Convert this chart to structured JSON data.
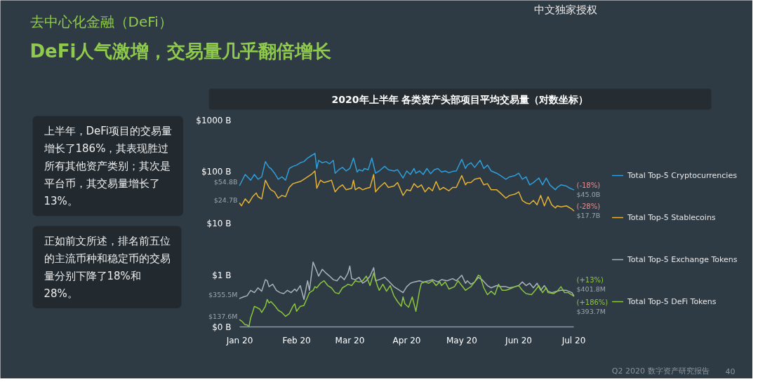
{
  "chart_data": {
    "type": "line",
    "title": "2020年上半年 各类资产头部项目平均交易量（对数坐标）",
    "annotations": [
      "去中心化金融（DeFi）",
      "DeFi人气激增，交易量几乎翻倍增长",
      "上半年，DeFi项目的交易量增长了186%，其表现胜过所有其他资产类别；其次是平台币，其交易量增长了13%。",
      "正如前文所述，排名前五位的主流币种和稳定币的交易量分别下降了18%和28%。",
      "中文独家授权",
      "Q2 2020 数字资产研究报告",
      "40",
      {
        "text": "(-18%)",
        "x": "2020-07-01",
        "y": 45.0
      },
      {
        "text": "(-28%)",
        "x": "2020-07-01",
        "y": 17.7
      },
      {
        "text": "(+13%)",
        "x": "2020-07-01",
        "y": 0.4018
      },
      {
        "text": "$401.8M",
        "x": "2020-07-01",
        "y": 0.4018
      },
      {
        "text": "(+186%)",
        "x": "2020-07-01",
        "y": 0.3937
      },
      {
        "text": "$393.7M",
        "x": "2020-07-01",
        "y": 0.3937
      },
      {
        "text": "$355.5M",
        "x": "2020-01-01",
        "y": 0.3555
      },
      {
        "text": "$137.6M",
        "x": "2020-01-01",
        "y": 0.1376
      }
    ],
    "xlim": [
      "2020-01-01",
      "2020-07-01"
    ],
    "xticks": [
      {
        "value": "2020-01-01",
        "label": "Jan 20"
      },
      {
        "value": "2020-02-01",
        "label": "Feb 20"
      },
      {
        "value": "2020-03-01",
        "label": "Mar 20"
      },
      {
        "value": "2020-04-01",
        "label": "Apr 20"
      },
      {
        "value": "2020-05-01",
        "label": "May 20"
      },
      {
        "value": "2020-06-01",
        "label": "Jun 20"
      },
      {
        "value": "2020-07-01",
        "label": "Jul 20"
      }
    ],
    "ylim": [
      0.1,
      1000
    ],
    "yticks": [
      {
        "value": 0.1,
        "label": "$0 B"
      },
      {
        "value": 1,
        "label": "$1 B"
      },
      {
        "value": 10,
        "label": "$10 B"
      },
      {
        "value": 100,
        "label": "$100 B"
      },
      {
        "value": 1000,
        "label": "$1000 B"
      }
    ],
    "log": true,
    "legend": "right",
    "series": [
      {
        "name": "Total Top-5 Cryptocurrencies",
        "color": "#2e9fd9",
        "x": [
          "2020-01-01",
          "2020-01-04",
          "2020-01-07",
          "2020-01-09",
          "2020-01-11",
          "2020-01-13",
          "2020-01-15",
          "2020-01-17",
          "2020-01-18",
          "2020-01-20",
          "2020-01-22",
          "2020-01-24",
          "2020-01-26",
          "2020-01-28",
          "2020-01-30",
          "2020-02-01",
          "2020-02-03",
          "2020-02-05",
          "2020-02-07",
          "2020-02-09",
          "2020-02-11",
          "2020-02-12",
          "2020-02-13",
          "2020-02-15",
          "2020-02-17",
          "2020-02-19",
          "2020-02-21",
          "2020-02-22",
          "2020-02-24",
          "2020-02-26",
          "2020-02-28",
          "2020-03-01",
          "2020-03-03",
          "2020-03-05",
          "2020-03-06",
          "2020-03-08",
          "2020-03-09",
          "2020-03-11",
          "2020-03-13",
          "2020-03-15",
          "2020-03-17",
          "2020-03-20",
          "2020-03-22",
          "2020-03-25",
          "2020-03-27",
          "2020-03-30",
          "2020-04-01",
          "2020-04-03",
          "2020-04-05",
          "2020-04-06",
          "2020-04-08",
          "2020-04-10",
          "2020-04-12",
          "2020-04-14",
          "2020-04-16",
          "2020-04-18",
          "2020-04-20",
          "2020-04-22",
          "2020-04-24",
          "2020-04-26",
          "2020-04-28",
          "2020-05-01",
          "2020-05-03",
          "2020-05-04",
          "2020-05-06",
          "2020-05-08",
          "2020-05-11",
          "2020-05-13",
          "2020-05-15",
          "2020-05-17",
          "2020-05-20",
          "2020-05-22",
          "2020-05-25",
          "2020-05-27",
          "2020-05-30",
          "2020-06-01",
          "2020-06-03",
          "2020-06-05",
          "2020-06-07",
          "2020-06-09",
          "2020-06-12",
          "2020-06-14",
          "2020-06-16",
          "2020-06-18",
          "2020-06-21",
          "2020-06-22",
          "2020-06-24",
          "2020-06-27",
          "2020-06-29",
          "2020-07-01"
        ],
        "values": [
          54.8,
          89,
          69,
          89,
          72,
          80,
          158,
          122,
          116,
          94,
          72,
          80,
          69,
          116,
          128,
          135,
          150,
          158,
          185,
          205,
          228,
          116,
          167,
          150,
          158,
          143,
          167,
          94,
          110,
          122,
          104,
          116,
          185,
          99,
          110,
          104,
          116,
          110,
          185,
          94,
          104,
          128,
          110,
          104,
          110,
          76,
          104,
          89,
          116,
          94,
          104,
          89,
          116,
          92,
          110,
          116,
          99,
          104,
          96,
          102,
          104,
          175,
          116,
          135,
          150,
          122,
          167,
          116,
          135,
          104,
          94,
          85,
          72,
          80,
          85,
          94,
          72,
          80,
          56,
          62,
          76,
          56,
          76,
          56,
          45,
          50,
          56,
          53,
          48,
          45.0
        ],
        "value_labels": [
          "$54.8B",
          null,
          null,
          null,
          null,
          null,
          null,
          null,
          null,
          null,
          null,
          null,
          null,
          null,
          null,
          null,
          null,
          null,
          null,
          null,
          null,
          null,
          null,
          null,
          null,
          null,
          null,
          null,
          null,
          null,
          null,
          null,
          null,
          null,
          null,
          null,
          null,
          null,
          null,
          null,
          null,
          null,
          null,
          null,
          null,
          null,
          null,
          null,
          null,
          null,
          null,
          null,
          null,
          null,
          null,
          null,
          null,
          null,
          null,
          null,
          null,
          null,
          null,
          null,
          null,
          null,
          null,
          null,
          null,
          null,
          null,
          null,
          null,
          null,
          null,
          null,
          null,
          null,
          null,
          null,
          null,
          null,
          null,
          null,
          null,
          null,
          null,
          null,
          null,
          "$45.0B"
        ]
      },
      {
        "name": "Total Top-5 Stablecoins",
        "color": "#e6b333",
        "x": [
          "2020-01-01",
          "2020-01-02",
          "2020-01-04",
          "2020-01-06",
          "2020-01-08",
          "2020-01-10",
          "2020-01-11",
          "2020-01-13",
          "2020-01-15",
          "2020-01-17",
          "2020-01-18",
          "2020-01-20",
          "2020-01-22",
          "2020-01-24",
          "2020-01-26",
          "2020-01-28",
          "2020-01-30",
          "2020-02-01",
          "2020-02-03",
          "2020-02-05",
          "2020-02-07",
          "2020-02-09",
          "2020-02-11",
          "2020-02-12",
          "2020-02-14",
          "2020-02-16",
          "2020-02-18",
          "2020-02-20",
          "2020-02-22",
          "2020-02-24",
          "2020-02-26",
          "2020-02-28",
          "2020-03-02",
          "2020-03-03",
          "2020-03-04",
          "2020-03-06",
          "2020-03-08",
          "2020-03-10",
          "2020-03-12",
          "2020-03-14",
          "2020-03-15",
          "2020-03-17",
          "2020-03-20",
          "2020-03-22",
          "2020-03-25",
          "2020-03-27",
          "2020-03-30",
          "2020-04-01",
          "2020-04-03",
          "2020-04-05",
          "2020-04-07",
          "2020-04-09",
          "2020-04-11",
          "2020-04-13",
          "2020-04-15",
          "2020-04-17",
          "2020-04-19",
          "2020-04-21",
          "2020-04-24",
          "2020-04-26",
          "2020-04-28",
          "2020-05-01",
          "2020-05-03",
          "2020-05-04",
          "2020-05-06",
          "2020-05-08",
          "2020-05-11",
          "2020-05-13",
          "2020-05-15",
          "2020-05-17",
          "2020-05-20",
          "2020-05-22",
          "2020-05-25",
          "2020-05-27",
          "2020-05-30",
          "2020-06-01",
          "2020-06-03",
          "2020-06-05",
          "2020-06-07",
          "2020-06-09",
          "2020-06-11",
          "2020-06-13",
          "2020-06-15",
          "2020-06-17",
          "2020-06-19",
          "2020-06-21",
          "2020-06-22",
          "2020-06-24",
          "2020-06-27",
          "2020-06-30",
          "2020-07-01"
        ],
        "values": [
          24.7,
          22,
          30,
          25,
          33,
          39,
          33,
          30,
          69,
          50,
          45,
          41,
          31,
          35,
          33,
          50,
          59,
          62,
          65,
          72,
          80,
          89,
          104,
          48,
          69,
          62,
          65,
          69,
          41,
          50,
          56,
          45,
          48,
          69,
          45,
          50,
          45,
          48,
          50,
          89,
          41,
          50,
          62,
          50,
          53,
          62,
          35,
          45,
          43,
          59,
          50,
          56,
          41,
          50,
          43,
          65,
          45,
          50,
          43,
          50,
          50,
          85,
          56,
          62,
          62,
          72,
          76,
          56,
          59,
          45,
          45,
          39,
          31,
          35,
          37,
          41,
          28,
          25,
          24,
          28,
          23,
          35,
          22,
          33,
          23,
          20,
          22,
          21,
          22,
          19,
          17.7
        ],
        "value_labels": [
          "$24.7B",
          null,
          null,
          null,
          null,
          null,
          null,
          null,
          null,
          null,
          null,
          null,
          null,
          null,
          null,
          null,
          null,
          null,
          null,
          null,
          null,
          null,
          null,
          null,
          null,
          null,
          null,
          null,
          null,
          null,
          null,
          null,
          null,
          null,
          null,
          null,
          null,
          null,
          null,
          null,
          null,
          null,
          null,
          null,
          null,
          null,
          null,
          null,
          null,
          null,
          null,
          null,
          null,
          null,
          null,
          null,
          null,
          null,
          null,
          null,
          null,
          null,
          null,
          null,
          null,
          null,
          null,
          null,
          null,
          null,
          null,
          null,
          null,
          null,
          null,
          null,
          null,
          null,
          null,
          null,
          null,
          null,
          null,
          null,
          null,
          null,
          null,
          null,
          null,
          null,
          "$17.7B"
        ]
      },
      {
        "name": "Total Top-5 Exchange Tokens",
        "color": "#a8b3bc",
        "x": [
          "2020-01-01",
          "2020-01-03",
          "2020-01-05",
          "2020-01-07",
          "2020-01-09",
          "2020-01-11",
          "2020-01-13",
          "2020-01-15",
          "2020-01-16",
          "2020-01-17",
          "2020-01-19",
          "2020-01-21",
          "2020-01-23",
          "2020-01-25",
          "2020-01-27",
          "2020-01-29",
          "2020-01-31",
          "2020-02-01",
          "2020-02-03",
          "2020-02-05",
          "2020-02-07",
          "2020-02-08",
          "2020-02-10",
          "2020-02-12",
          "2020-02-13",
          "2020-02-15",
          "2020-02-17",
          "2020-02-19",
          "2020-02-21",
          "2020-02-23",
          "2020-02-25",
          "2020-02-27",
          "2020-02-29",
          "2020-03-01",
          "2020-03-02",
          "2020-03-04",
          "2020-03-06",
          "2020-03-08",
          "2020-03-10",
          "2020-03-12",
          "2020-03-14",
          "2020-03-15",
          "2020-03-17",
          "2020-03-20",
          "2020-03-22",
          "2020-03-25",
          "2020-03-27",
          "2020-03-30",
          "2020-04-01",
          "2020-04-03",
          "2020-04-05",
          "2020-04-08",
          "2020-04-10",
          "2020-04-13",
          "2020-04-15",
          "2020-04-18",
          "2020-04-20",
          "2020-04-23",
          "2020-04-26",
          "2020-04-28",
          "2020-05-01",
          "2020-05-03",
          "2020-05-04",
          "2020-05-06",
          "2020-05-08",
          "2020-05-10",
          "2020-05-12",
          "2020-05-15",
          "2020-05-17",
          "2020-05-20",
          "2020-05-22",
          "2020-05-25",
          "2020-05-27",
          "2020-05-30",
          "2020-06-01",
          "2020-06-03",
          "2020-06-05",
          "2020-06-07",
          "2020-06-09",
          "2020-06-11",
          "2020-06-13",
          "2020-06-15",
          "2020-06-17",
          "2020-06-19",
          "2020-06-22",
          "2020-06-24",
          "2020-06-27",
          "2020-06-30",
          "2020-07-01"
        ],
        "values": [
          0.3555,
          0.38,
          0.4,
          0.51,
          0.46,
          0.57,
          0.49,
          0.82,
          0.78,
          0.6,
          0.67,
          0.51,
          0.46,
          0.44,
          0.51,
          0.46,
          0.54,
          0.49,
          0.63,
          0.34,
          0.78,
          0.51,
          1.8,
          1.2,
          0.96,
          1.3,
          1.1,
          0.96,
          0.82,
          0.78,
          0.96,
          0.82,
          1.1,
          1.5,
          0.86,
          0.82,
          0.91,
          0.7,
          0.78,
          0.96,
          1.4,
          0.78,
          0.82,
          0.91,
          0.78,
          0.6,
          0.54,
          0.46,
          0.6,
          0.7,
          0.74,
          0.78,
          0.74,
          0.78,
          0.82,
          0.74,
          0.82,
          0.78,
          0.86,
          0.78,
          1.0,
          0.7,
          0.78,
          0.67,
          0.74,
          0.91,
          0.82,
          0.63,
          0.57,
          0.63,
          0.6,
          0.6,
          0.57,
          0.6,
          0.63,
          0.74,
          0.63,
          0.7,
          0.57,
          0.7,
          0.51,
          0.63,
          0.49,
          0.46,
          0.49,
          0.51,
          0.51,
          0.46,
          0.4018
        ]
      },
      {
        "name": "Total Top-5 DeFi Tokens",
        "color": "#8cc63f",
        "x": [
          "2020-01-01",
          "2020-01-02",
          "2020-01-04",
          "2020-01-05",
          "2020-01-06",
          "2020-01-07",
          "2020-01-08",
          "2020-01-09",
          "2020-01-10",
          "2020-01-12",
          "2020-01-13",
          "2020-01-15",
          "2020-01-16",
          "2020-01-17",
          "2020-01-18",
          "2020-01-20",
          "2020-01-22",
          "2020-01-24",
          "2020-01-26",
          "2020-01-28",
          "2020-01-30",
          "2020-01-31",
          "2020-02-01",
          "2020-02-03",
          "2020-02-05",
          "2020-02-07",
          "2020-02-08",
          "2020-02-10",
          "2020-02-11",
          "2020-02-12",
          "2020-02-14",
          "2020-02-16",
          "2020-02-18",
          "2020-02-20",
          "2020-02-22",
          "2020-02-24",
          "2020-02-26",
          "2020-02-28",
          "2020-02-29",
          "2020-03-02",
          "2020-03-04",
          "2020-03-06",
          "2020-03-08",
          "2020-03-10",
          "2020-03-12",
          "2020-03-14",
          "2020-03-16",
          "2020-03-17",
          "2020-03-19",
          "2020-03-21",
          "2020-03-23",
          "2020-03-25",
          "2020-03-27",
          "2020-03-29",
          "2020-03-30",
          "2020-03-31",
          "2020-04-02",
          "2020-04-04",
          "2020-04-06",
          "2020-04-08",
          "2020-04-09",
          "2020-04-11",
          "2020-04-13",
          "2020-04-15",
          "2020-04-17",
          "2020-04-19",
          "2020-04-20",
          "2020-04-22",
          "2020-04-24",
          "2020-04-27",
          "2020-04-29",
          "2020-05-01",
          "2020-05-03",
          "2020-05-04",
          "2020-05-06",
          "2020-05-08",
          "2020-05-10",
          "2020-05-11",
          "2020-05-13",
          "2020-05-15",
          "2020-05-17",
          "2020-05-19",
          "2020-05-21",
          "2020-05-23",
          "2020-05-25",
          "2020-05-27",
          "2020-05-30",
          "2020-06-01",
          "2020-06-03",
          "2020-06-05",
          "2020-06-08",
          "2020-06-10",
          "2020-06-12",
          "2020-06-14",
          "2020-06-16",
          "2020-06-17",
          "2020-06-20",
          "2020-06-22",
          "2020-06-24",
          "2020-06-26",
          "2020-06-28",
          "2020-07-01"
        ],
        "values": [
          0.1376,
          0.13,
          0.11,
          0.11,
          0.1,
          0.15,
          0.19,
          0.25,
          0.24,
          0.22,
          0.19,
          0.25,
          0.34,
          0.29,
          0.31,
          0.26,
          0.21,
          0.19,
          0.16,
          0.18,
          0.25,
          0.28,
          0.2,
          0.25,
          0.26,
          0.38,
          0.46,
          0.51,
          0.6,
          0.57,
          0.7,
          0.78,
          0.63,
          0.57,
          0.46,
          0.44,
          0.57,
          0.63,
          0.67,
          0.63,
          0.78,
          0.74,
          0.78,
          0.96,
          0.63,
          1.1,
          0.63,
          0.51,
          0.67,
          0.49,
          0.63,
          0.4,
          0.31,
          0.25,
          0.38,
          0.28,
          0.24,
          0.38,
          0.2,
          0.51,
          0.7,
          0.74,
          0.7,
          0.78,
          0.63,
          0.74,
          0.63,
          0.74,
          0.54,
          0.6,
          0.78,
          0.63,
          0.51,
          0.54,
          0.6,
          0.74,
          1.0,
          0.96,
          0.57,
          0.42,
          0.49,
          0.42,
          0.67,
          0.51,
          0.51,
          0.54,
          0.6,
          0.63,
          0.51,
          0.44,
          0.42,
          0.51,
          0.63,
          0.46,
          0.57,
          0.46,
          0.44,
          0.49,
          0.6,
          0.46,
          0.46,
          0.3937
        ]
      }
    ]
  }
}
